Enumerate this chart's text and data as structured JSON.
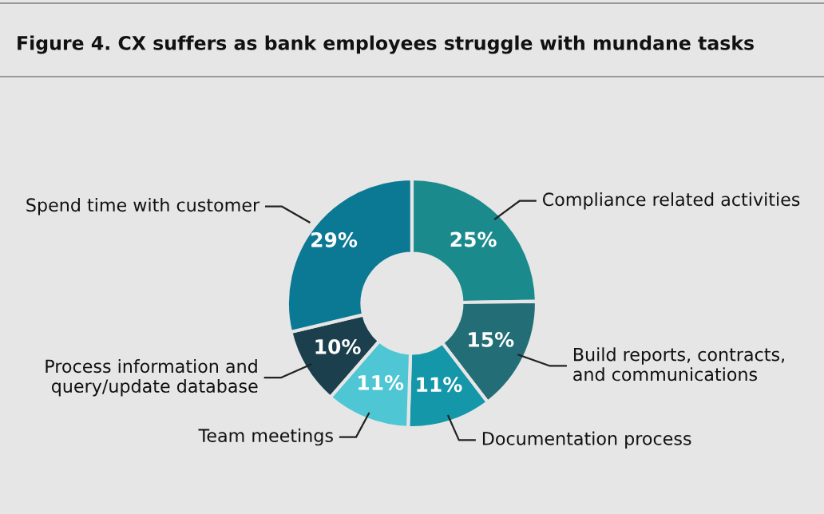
{
  "chart_data": {
    "type": "donut",
    "title": "Figure 4. CX suffers as bank employees struggle with mundane tasks",
    "categories": [
      "Compliance related activities",
      "Build reports, contracts,\nand communications",
      "Documentation process",
      "Team meetings",
      "Process information and\nquery/update database",
      "Spend time with customer"
    ],
    "values": [
      25,
      15,
      11,
      11,
      10,
      29
    ],
    "value_labels": [
      "25%",
      "15%",
      "11%",
      "11%",
      "10%",
      "29%"
    ],
    "colors": [
      "#1b8a8c",
      "#236d76",
      "#1497a8",
      "#4ec6d4",
      "#1b3f4c",
      "#0b7894"
    ],
    "legend": false
  }
}
